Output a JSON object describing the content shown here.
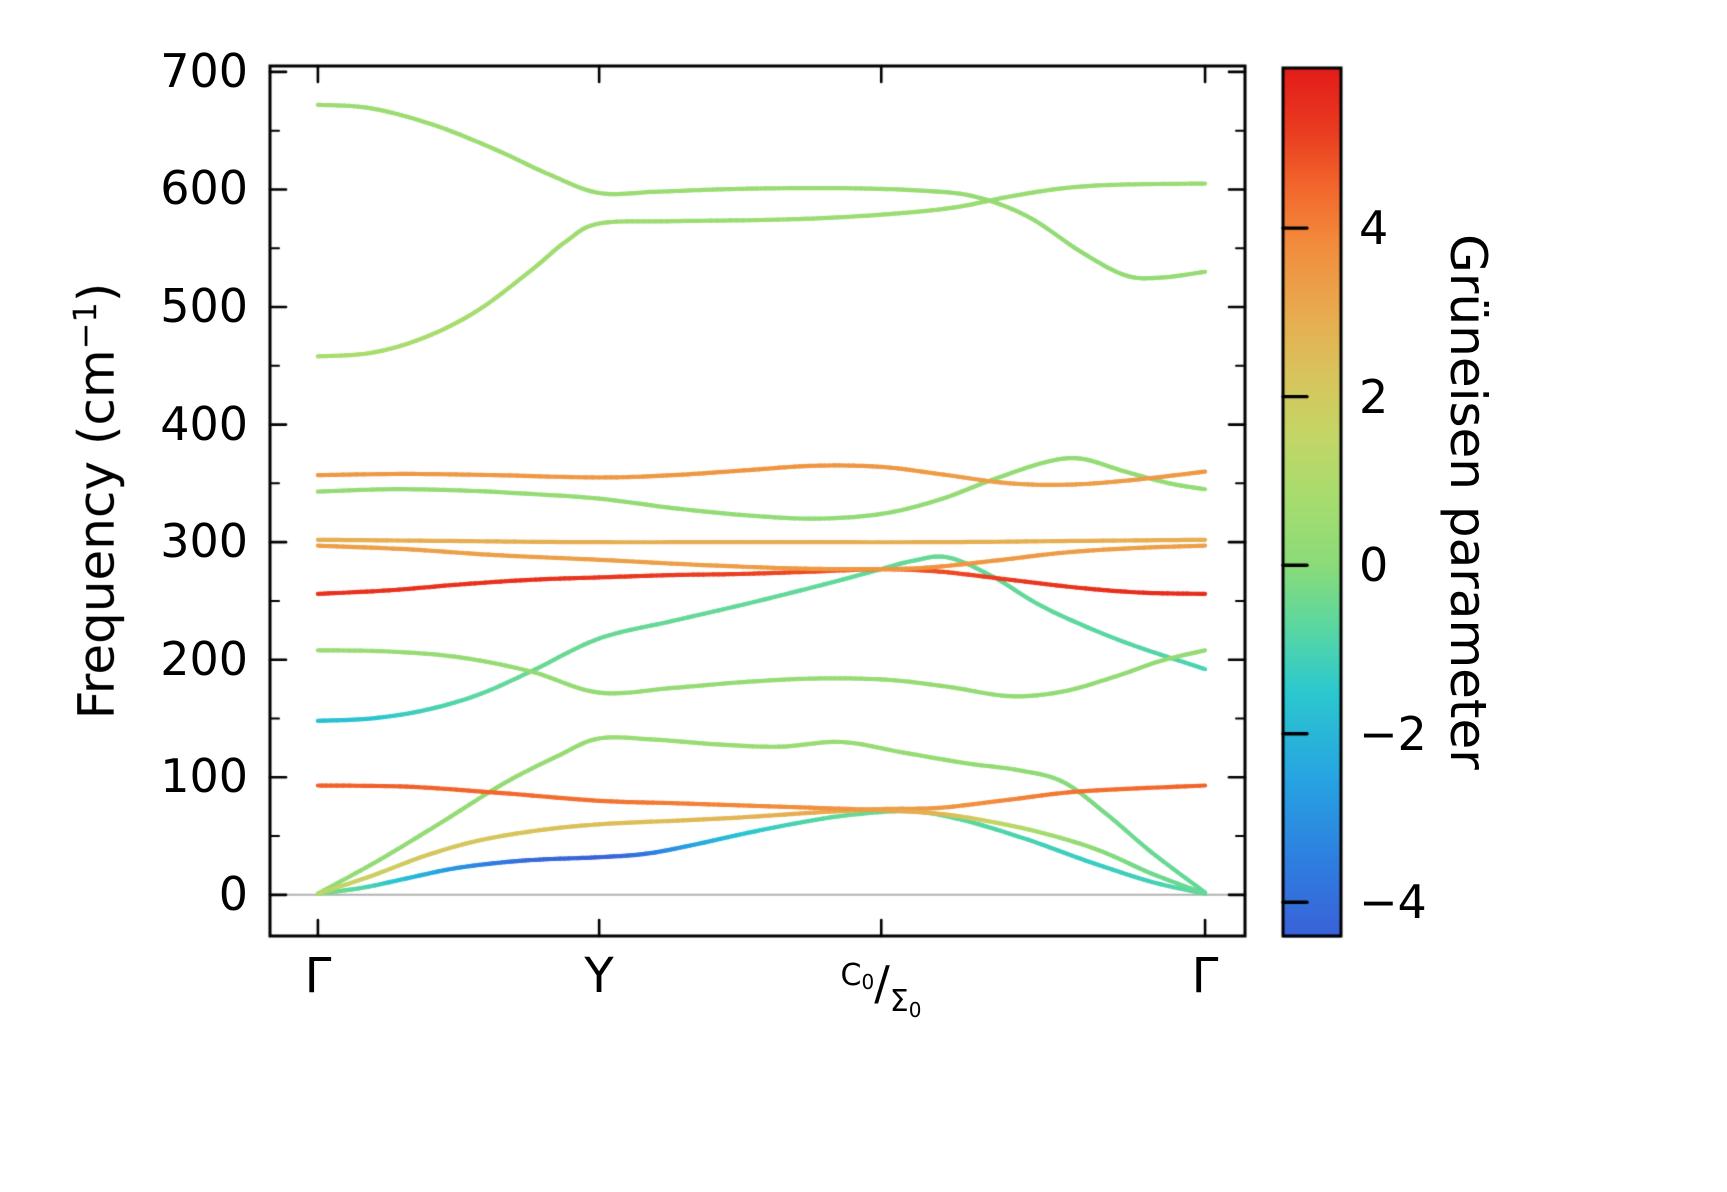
{
  "chart_data": {
    "type": "line",
    "title": "",
    "description": "Phonon band structure colored by Grüneisen parameter",
    "ylabel": {
      "pre": "Frequency (cm",
      "sup": "−1",
      "post": ")"
    },
    "ylim": [
      -35,
      705
    ],
    "xlim": [
      -0.054,
      1.045
    ],
    "yticks": [
      0,
      100,
      200,
      300,
      400,
      500,
      600,
      700
    ],
    "ytick_labels": [
      "0",
      "100",
      "200",
      "300",
      "400",
      "500",
      "600",
      "700"
    ],
    "y_minor_step": 50,
    "zero_line": 0,
    "xtick_positions": [
      0,
      0.317,
      0.635,
      1.0
    ],
    "xticks": [
      {
        "label": "Γ"
      },
      {
        "label": "Y"
      },
      {
        "parts": {
          "pre": "C",
          "pre_sub": "0",
          "slash": "/",
          "post": "Σ",
          "post_sub": "0"
        }
      },
      {
        "label": "Γ"
      }
    ],
    "colorbar": {
      "label": "Grüneisen parameter",
      "vmin": -4.4,
      "vmax": 5.9,
      "ticks": [
        4,
        2,
        0,
        -2,
        -4
      ],
      "tick_labels": [
        "4",
        "2",
        "0",
        "−2",
        "−4"
      ],
      "stops": [
        {
          "v": -4.4,
          "c": "#3a62d9"
        },
        {
          "v": -3.5,
          "c": "#2f7fe0"
        },
        {
          "v": -2.5,
          "c": "#27a5e2"
        },
        {
          "v": -1.5,
          "c": "#2cc8cf"
        },
        {
          "v": -0.7,
          "c": "#5cd8a0"
        },
        {
          "v": 0.0,
          "c": "#8bdb79"
        },
        {
          "v": 0.8,
          "c": "#a7dd6f"
        },
        {
          "v": 1.6,
          "c": "#c6d565"
        },
        {
          "v": 2.3,
          "c": "#d9c35c"
        },
        {
          "v": 3.0,
          "c": "#e9ab50"
        },
        {
          "v": 3.8,
          "c": "#f28d3d"
        },
        {
          "v": 4.5,
          "c": "#f2672c"
        },
        {
          "v": 5.2,
          "c": "#ea3a20"
        },
        {
          "v": 5.9,
          "c": "#e31d1a"
        }
      ]
    },
    "bands": [
      {
        "name": "acoustic-1",
        "points": [
          [
            0,
            1,
            0
          ],
          [
            0.05,
            6,
            -0.8
          ],
          [
            0.1,
            14,
            -1.8
          ],
          [
            0.15,
            22,
            -2.8
          ],
          [
            0.2,
            27,
            -3.6
          ],
          [
            0.25,
            30,
            -4.2
          ],
          [
            0.317,
            32,
            -4.4
          ],
          [
            0.37,
            35,
            -3.8
          ],
          [
            0.42,
            42,
            -2.6
          ],
          [
            0.48,
            52,
            -1.6
          ],
          [
            0.54,
            61,
            -1
          ],
          [
            0.6,
            68,
            -0.5
          ],
          [
            0.67,
            71,
            -0.4
          ],
          [
            0.73,
            63,
            -0.7
          ],
          [
            0.8,
            47,
            -1
          ],
          [
            0.87,
            28,
            -1.3
          ],
          [
            0.94,
            11,
            -1.1
          ],
          [
            1,
            1,
            -0.5
          ]
        ]
      },
      {
        "name": "acoustic-2",
        "points": [
          [
            0,
            1,
            0.2
          ],
          [
            0.07,
            30,
            0.25
          ],
          [
            0.14,
            62,
            0.3
          ],
          [
            0.21,
            95,
            0.3
          ],
          [
            0.27,
            118,
            0.35
          ],
          [
            0.317,
            133,
            0.4
          ],
          [
            0.38,
            132,
            0.4
          ],
          [
            0.45,
            128,
            0.4
          ],
          [
            0.52,
            126,
            0.4
          ],
          [
            0.59,
            130,
            0.4
          ],
          [
            0.66,
            121,
            0.35
          ],
          [
            0.73,
            112,
            0.3
          ],
          [
            0.79,
            106,
            0.2
          ],
          [
            0.84,
            96,
            0
          ],
          [
            0.89,
            68,
            -0.3
          ],
          [
            0.94,
            36,
            -0.5
          ],
          [
            1,
            2,
            -0.6
          ]
        ]
      },
      {
        "name": "acoustic-3",
        "points": [
          [
            0,
            1,
            1.2
          ],
          [
            0.06,
            16,
            1.8
          ],
          [
            0.12,
            33,
            2.1
          ],
          [
            0.18,
            46,
            2.2
          ],
          [
            0.25,
            55,
            2.3
          ],
          [
            0.317,
            60,
            2.4
          ],
          [
            0.4,
            63,
            2.5
          ],
          [
            0.48,
            66,
            2.7
          ],
          [
            0.56,
            70,
            3
          ],
          [
            0.635,
            73,
            3.2
          ],
          [
            0.7,
            74,
            3.5
          ],
          [
            0.78,
            81,
            3.9
          ],
          [
            0.86,
            88,
            4.3
          ],
          [
            1,
            93,
            4.6
          ]
        ]
      },
      {
        "name": "optical-93",
        "points": [
          [
            0,
            93,
            4.6
          ],
          [
            0.1,
            92,
            4.6
          ],
          [
            0.2,
            87,
            4.5
          ],
          [
            0.317,
            80,
            4.3
          ],
          [
            0.4,
            78,
            4.1
          ],
          [
            0.48,
            76,
            3.9
          ],
          [
            0.56,
            74,
            3.7
          ],
          [
            0.635,
            72,
            3.3
          ],
          [
            0.7,
            69,
            2.7
          ],
          [
            0.76,
            62,
            1.7
          ],
          [
            0.82,
            52,
            0.7
          ],
          [
            0.88,
            38,
            0
          ],
          [
            0.94,
            18,
            -0.4
          ],
          [
            1,
            1,
            -0.6
          ]
        ]
      },
      {
        "name": "optical-148",
        "points": [
          [
            0,
            148,
            -1.8
          ],
          [
            0.06,
            150,
            -1.6
          ],
          [
            0.12,
            157,
            -1.1
          ],
          [
            0.18,
            170,
            -0.7
          ],
          [
            0.24,
            190,
            -0.5
          ],
          [
            0.317,
            218,
            -0.5
          ],
          [
            0.4,
            233,
            -0.55
          ],
          [
            0.48,
            247,
            -0.6
          ],
          [
            0.56,
            262,
            -0.6
          ],
          [
            0.62,
            274,
            -0.6
          ],
          [
            0.67,
            284,
            -0.55
          ],
          [
            0.71,
            287,
            -0.5
          ],
          [
            0.76,
            271,
            -0.55
          ],
          [
            0.81,
            248,
            -0.6
          ],
          [
            0.86,
            230,
            -0.7
          ],
          [
            0.92,
            212,
            -0.8
          ],
          [
            1,
            192,
            -1
          ]
        ]
      },
      {
        "name": "optical-208",
        "points": [
          [
            0,
            208,
            0.4
          ],
          [
            0.08,
            207,
            0.4
          ],
          [
            0.16,
            202,
            0.35
          ],
          [
            0.24,
            190,
            0.3
          ],
          [
            0.317,
            172,
            0.3
          ],
          [
            0.4,
            176,
            0.3
          ],
          [
            0.48,
            181,
            0.3
          ],
          [
            0.56,
            184,
            0.35
          ],
          [
            0.64,
            183,
            0.35
          ],
          [
            0.71,
            177,
            0.3
          ],
          [
            0.78,
            169,
            0.25
          ],
          [
            0.84,
            173,
            0.25
          ],
          [
            0.9,
            186,
            0.3
          ],
          [
            0.95,
            199,
            0.3
          ],
          [
            1,
            208,
            0.35
          ]
        ]
      },
      {
        "name": "optical-256",
        "points": [
          [
            0,
            256,
            5.4
          ],
          [
            0.08,
            259,
            5.4
          ],
          [
            0.16,
            264,
            5.4
          ],
          [
            0.24,
            268,
            5.4
          ],
          [
            0.317,
            270,
            5.3
          ],
          [
            0.4,
            272,
            5.2
          ],
          [
            0.48,
            273,
            5.1
          ],
          [
            0.56,
            275,
            4.9
          ],
          [
            0.635,
            277,
            4.6
          ],
          [
            0.7,
            275,
            4.9
          ],
          [
            0.78,
            268,
            5.2
          ],
          [
            0.86,
            261,
            5.4
          ],
          [
            0.93,
            257,
            5.5
          ],
          [
            1,
            256,
            5.5
          ]
        ]
      },
      {
        "name": "optical-297",
        "points": [
          [
            0,
            297,
            3.3
          ],
          [
            0.1,
            294,
            3.3
          ],
          [
            0.2,
            289,
            3.3
          ],
          [
            0.317,
            285,
            3.3
          ],
          [
            0.42,
            281,
            3.3
          ],
          [
            0.52,
            278,
            3.4
          ],
          [
            0.6,
            277,
            3.5
          ],
          [
            0.68,
            278,
            3.6
          ],
          [
            0.76,
            284,
            3.5
          ],
          [
            0.84,
            291,
            3.4
          ],
          [
            0.92,
            295,
            3.3
          ],
          [
            1,
            297,
            3.3
          ]
        ]
      },
      {
        "name": "optical-300",
        "points": [
          [
            0,
            302,
            2.9
          ],
          [
            0.15,
            301,
            2.9
          ],
          [
            0.3,
            300,
            2.9
          ],
          [
            0.5,
            300,
            2.9
          ],
          [
            0.7,
            300,
            2.9
          ],
          [
            0.85,
            301,
            2.9
          ],
          [
            1,
            302,
            2.9
          ]
        ]
      },
      {
        "name": "optical-343",
        "points": [
          [
            0,
            343,
            0.3
          ],
          [
            0.08,
            345,
            0.3
          ],
          [
            0.16,
            344,
            0.3
          ],
          [
            0.24,
            341,
            0.3
          ],
          [
            0.317,
            337,
            0.3
          ],
          [
            0.4,
            329,
            0.25
          ],
          [
            0.48,
            323,
            0.2
          ],
          [
            0.56,
            320,
            0.2
          ],
          [
            0.635,
            324,
            0.2
          ],
          [
            0.7,
            336,
            0.25
          ],
          [
            0.76,
            353,
            0.3
          ],
          [
            0.82,
            368,
            0.3
          ],
          [
            0.86,
            371,
            0.3
          ],
          [
            0.91,
            360,
            0.3
          ],
          [
            0.96,
            350,
            0.3
          ],
          [
            1,
            345,
            0.3
          ]
        ]
      },
      {
        "name": "optical-357",
        "points": [
          [
            0,
            357,
            3.5
          ],
          [
            0.1,
            358,
            3.5
          ],
          [
            0.2,
            357,
            3.5
          ],
          [
            0.317,
            355,
            3.5
          ],
          [
            0.4,
            357,
            3.5
          ],
          [
            0.48,
            361,
            3.6
          ],
          [
            0.56,
            365,
            3.6
          ],
          [
            0.635,
            364,
            3.5
          ],
          [
            0.7,
            358,
            3.4
          ],
          [
            0.78,
            350,
            3.3
          ],
          [
            0.85,
            349,
            3.3
          ],
          [
            0.92,
            353,
            3.4
          ],
          [
            1,
            360,
            3.5
          ]
        ]
      },
      {
        "name": "optical-458",
        "points": [
          [
            0,
            458,
            0.9
          ],
          [
            0.06,
            461,
            0.9
          ],
          [
            0.12,
            474,
            0.85
          ],
          [
            0.18,
            497,
            0.8
          ],
          [
            0.24,
            531,
            0.7
          ],
          [
            0.28,
            556,
            0.6
          ],
          [
            0.317,
            571,
            0.55
          ],
          [
            0.4,
            573,
            0.5
          ],
          [
            0.5,
            574,
            0.5
          ],
          [
            0.58,
            576,
            0.5
          ],
          [
            0.66,
            580,
            0.5
          ],
          [
            0.72,
            585,
            0.45
          ],
          [
            0.78,
            594,
            0.4
          ],
          [
            0.84,
            601,
            0.4
          ],
          [
            0.9,
            604,
            0.4
          ],
          [
            1,
            605,
            0.4
          ]
        ]
      },
      {
        "name": "optical-672",
        "points": [
          [
            0,
            672,
            0.5
          ],
          [
            0.06,
            669,
            0.5
          ],
          [
            0.13,
            655,
            0.5
          ],
          [
            0.2,
            634,
            0.5
          ],
          [
            0.26,
            613,
            0.5
          ],
          [
            0.317,
            597,
            0.45
          ],
          [
            0.38,
            598,
            0.45
          ],
          [
            0.45,
            600,
            0.45
          ],
          [
            0.52,
            601,
            0.45
          ],
          [
            0.6,
            601,
            0.45
          ],
          [
            0.68,
            599,
            0.4
          ],
          [
            0.74,
            594,
            0.35
          ],
          [
            0.8,
            577,
            0.3
          ],
          [
            0.86,
            547,
            0.25
          ],
          [
            0.91,
            527,
            0.25
          ],
          [
            0.95,
            525,
            0.3
          ],
          [
            1,
            530,
            0.35
          ]
        ]
      }
    ]
  }
}
